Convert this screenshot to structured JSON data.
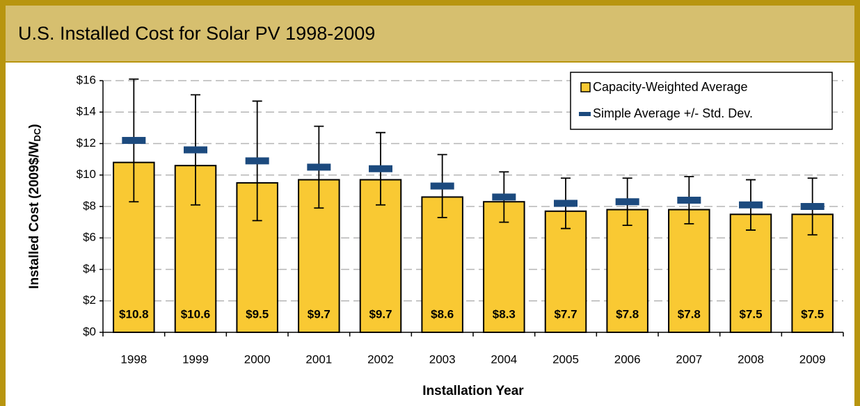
{
  "chart_data": {
    "type": "bar",
    "title": "U.S. Installed Cost for Solar PV 1998-2009",
    "x_label": "Installation Year",
    "y_label": [
      "Installed Cost (2009$/W",
      "DC",
      ")"
    ],
    "categories": [
      "1998",
      "1999",
      "2000",
      "2001",
      "2002",
      "2003",
      "2004",
      "2005",
      "2006",
      "2007",
      "2008",
      "2009"
    ],
    "series": [
      {
        "name": "Capacity-Weighted Average",
        "color": "#f9c933",
        "values": [
          10.8,
          10.6,
          9.5,
          9.7,
          9.7,
          8.6,
          8.3,
          7.7,
          7.8,
          7.8,
          7.5,
          7.5
        ],
        "value_labels": [
          "$10.8",
          "$10.6",
          "$9.5",
          "$9.7",
          "$9.7",
          "$8.6",
          "$8.3",
          "$7.7",
          "$7.8",
          "$7.8",
          "$7.5",
          "$7.5"
        ]
      },
      {
        "name": "Simple Average +/- Std. Dev.",
        "color": "#1c4a7e",
        "values": [
          12.2,
          11.6,
          10.9,
          10.5,
          10.4,
          9.3,
          8.6,
          8.2,
          8.3,
          8.4,
          8.1,
          8.0
        ],
        "errors": [
          3.9,
          3.5,
          3.8,
          2.6,
          2.3,
          2.0,
          1.6,
          1.6,
          1.5,
          1.5,
          1.6,
          1.8
        ]
      }
    ],
    "ylim": [
      0,
      16
    ],
    "yticks": [
      {
        "value": 0,
        "label": "$0"
      },
      {
        "value": 2,
        "label": "$2"
      },
      {
        "value": 4,
        "label": "$4"
      },
      {
        "value": 6,
        "label": "$6"
      },
      {
        "value": 8,
        "label": "$8"
      },
      {
        "value": 10,
        "label": "$10"
      },
      {
        "value": 12,
        "label": "$12"
      },
      {
        "value": 14,
        "label": "$14"
      },
      {
        "value": 16,
        "label": "$16"
      }
    ],
    "grid": true,
    "legend": "top-right"
  }
}
